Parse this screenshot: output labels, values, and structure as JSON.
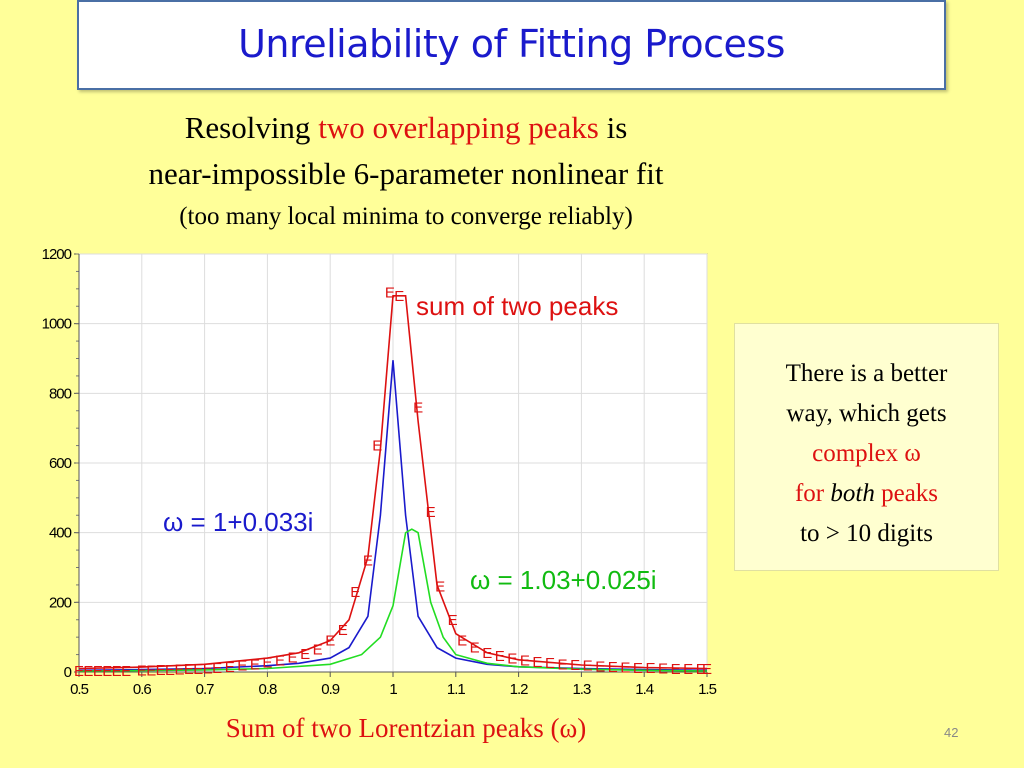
{
  "slide": {
    "title": "Unreliability of Fitting Process",
    "subtitle_line1_a": "Resolving ",
    "subtitle_line1_b": "two overlapping peaks",
    "subtitle_line1_c": " is",
    "subtitle_line2": "near-impossible 6-parameter nonlinear fit",
    "subtitle_line3": "(too many local minima to converge reliably)",
    "xlabel": "Sum of two Lorentzian peaks (ω)",
    "page_number": "42",
    "side_note": {
      "line1": "There is a better",
      "line2": "way, which gets",
      "line3": "complex ω",
      "line4_a": "for ",
      "line4_b": "both",
      "line4_c": " peaks",
      "line5": "to > 10 digits"
    }
  },
  "chart_data": {
    "type": "line",
    "xlim": [
      0.5,
      1.5
    ],
    "ylim": [
      0,
      1200
    ],
    "x_ticks": [
      "0.5",
      "0.6",
      "0.7",
      "0.8",
      "0.9",
      "1",
      "1.1",
      "1.2",
      "1.3",
      "1.4",
      "1.5"
    ],
    "y_ticks": [
      "0",
      "200",
      "400",
      "600",
      "800",
      "1000",
      "1200"
    ],
    "grid": true,
    "annotations": {
      "sum": "sum of two peaks",
      "peak1": "ω = 1+0.033i",
      "peak2": "ω = 1.03+0.025i"
    },
    "marker_label": "E",
    "colors": {
      "sum": "#dd1111",
      "peak1": "#1a1acc",
      "peak2": "#22dd22",
      "markers": "#dd1111"
    },
    "series": [
      {
        "key": "peak1",
        "x": [
          0.5,
          0.6,
          0.7,
          0.8,
          0.85,
          0.9,
          0.93,
          0.96,
          0.98,
          1.0,
          1.02,
          1.04,
          1.07,
          1.1,
          1.15,
          1.2,
          1.3,
          1.4,
          1.5
        ],
        "y": [
          5,
          7,
          10,
          18,
          25,
          40,
          70,
          160,
          450,
          895,
          450,
          160,
          70,
          40,
          22,
          15,
          10,
          7,
          5
        ]
      },
      {
        "key": "peak2",
        "x": [
          0.5,
          0.6,
          0.7,
          0.8,
          0.9,
          0.95,
          0.98,
          1.0,
          1.02,
          1.03,
          1.04,
          1.06,
          1.08,
          1.1,
          1.15,
          1.2,
          1.3,
          1.4,
          1.5
        ],
        "y": [
          3,
          4,
          6,
          10,
          22,
          50,
          100,
          190,
          400,
          410,
          400,
          200,
          100,
          50,
          25,
          15,
          8,
          5,
          3
        ]
      },
      {
        "key": "sum",
        "x": [
          0.5,
          0.6,
          0.7,
          0.8,
          0.85,
          0.9,
          0.93,
          0.96,
          0.98,
          1.0,
          1.02,
          1.04,
          1.07,
          1.1,
          1.15,
          1.2,
          1.3,
          1.4,
          1.5
        ],
        "y": [
          10,
          14,
          22,
          40,
          55,
          90,
          150,
          330,
          640,
          1080,
          1080,
          720,
          250,
          110,
          55,
          35,
          20,
          13,
          10
        ]
      }
    ],
    "markers": {
      "x": [
        0.5,
        0.515,
        0.53,
        0.545,
        0.56,
        0.575,
        0.6,
        0.615,
        0.63,
        0.645,
        0.66,
        0.675,
        0.69,
        0.705,
        0.72,
        0.74,
        0.76,
        0.78,
        0.8,
        0.82,
        0.84,
        0.86,
        0.88,
        0.9,
        0.92,
        0.94,
        0.96,
        0.975,
        0.995,
        1.01,
        1.04,
        1.06,
        1.075,
        1.095,
        1.11,
        1.13,
        1.15,
        1.17,
        1.19,
        1.21,
        1.23,
        1.25,
        1.27,
        1.29,
        1.31,
        1.33,
        1.35,
        1.37,
        1.39,
        1.41,
        1.43,
        1.45,
        1.47,
        1.49,
        1.5
      ],
      "y": [
        3,
        3,
        3,
        3,
        3,
        3,
        5,
        5,
        6,
        6,
        7,
        8,
        9,
        10,
        12,
        15,
        18,
        22,
        27,
        33,
        41,
        51,
        65,
        90,
        120,
        230,
        320,
        650,
        1090,
        1080,
        760,
        460,
        245,
        150,
        90,
        70,
        55,
        46,
        39,
        33,
        29,
        26,
        22,
        20,
        18,
        16,
        15,
        13,
        12,
        11,
        10,
        9,
        9,
        8,
        8
      ]
    }
  }
}
